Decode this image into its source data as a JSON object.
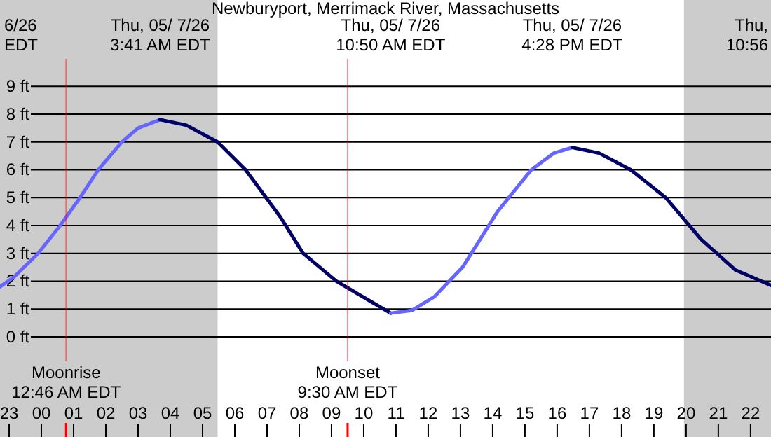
{
  "chart_data": {
    "type": "line",
    "title": "Newburyport, Merrimack River, Massachusetts",
    "xlim": [
      "--05-06T22:43",
      "--05-07T22:38"
    ],
    "ylim": [
      -3.6,
      12.1
    ],
    "xticks": [
      {
        "value": "--05-06T23:00",
        "label": "23"
      },
      {
        "value": "--05-07T00:00",
        "label": "00"
      },
      {
        "value": "--05-07T01:00",
        "label": "01"
      },
      {
        "value": "--05-07T02:00",
        "label": "02"
      },
      {
        "value": "--05-07T03:00",
        "label": "03"
      },
      {
        "value": "--05-07T04:00",
        "label": "04"
      },
      {
        "value": "--05-07T05:00",
        "label": "05"
      },
      {
        "value": "--05-07T06:00",
        "label": "06"
      },
      {
        "value": "--05-07T07:00",
        "label": "07"
      },
      {
        "value": "--05-07T08:00",
        "label": "08"
      },
      {
        "value": "--05-07T09:00",
        "label": "09"
      },
      {
        "value": "--05-07T10:00",
        "label": "10"
      },
      {
        "value": "--05-07T11:00",
        "label": "11"
      },
      {
        "value": "--05-07T12:00",
        "label": "12"
      },
      {
        "value": "--05-07T13:00",
        "label": "13"
      },
      {
        "value": "--05-07T14:00",
        "label": "14"
      },
      {
        "value": "--05-07T15:00",
        "label": "15"
      },
      {
        "value": "--05-07T16:00",
        "label": "16"
      },
      {
        "value": "--05-07T17:00",
        "label": "17"
      },
      {
        "value": "--05-07T18:00",
        "label": "18"
      },
      {
        "value": "--05-07T19:00",
        "label": "19"
      },
      {
        "value": "--05-07T20:00",
        "label": "20"
      },
      {
        "value": "--05-07T21:00",
        "label": "21"
      },
      {
        "value": "--05-07T22:00",
        "label": "22"
      }
    ],
    "yticks": [
      {
        "value": 0,
        "label": "0 ft"
      },
      {
        "value": 1,
        "label": "1 ft"
      },
      {
        "value": 2,
        "label": "2 ft"
      },
      {
        "value": 3,
        "label": "3 ft"
      },
      {
        "value": 4,
        "label": "4 ft"
      },
      {
        "value": 5,
        "label": "5 ft"
      },
      {
        "value": 6,
        "label": "6 ft"
      },
      {
        "value": 7,
        "label": "7 ft"
      },
      {
        "value": 8,
        "label": "8 ft"
      },
      {
        "value": 9,
        "label": "9 ft"
      }
    ],
    "grid": "y",
    "series": [
      {
        "color": "#6666ff",
        "x": [
          "--05-06T22:43",
          "--05-06T23:09",
          "--05-06T23:54",
          "--05-07T00:35",
          "--05-07T01:12",
          "--05-07T01:46",
          "--05-07T02:30",
          "--05-07T03:00",
          "--05-07T03:41"
        ],
        "values": [
          1.8,
          2.15,
          3.0,
          4.0,
          5.0,
          6.0,
          7.0,
          7.5,
          7.8
        ]
      },
      {
        "color": "#000066",
        "x": [
          "--05-07T03:41",
          "--05-07T04:30",
          "--05-07T05:28",
          "--05-07T06:20",
          "--05-07T07:25",
          "--05-07T08:07",
          "--05-07T09:09",
          "--05-07T10:06",
          "--05-07T10:50"
        ],
        "values": [
          7.8,
          7.6,
          7.0,
          6.0,
          4.3,
          3.0,
          2.0,
          1.35,
          0.85
        ]
      },
      {
        "color": "#6666ff",
        "x": [
          "--05-07T10:50",
          "--05-07T11:30",
          "--05-07T12:12",
          "--05-07T13:04",
          "--05-07T14:09",
          "--05-07T15:12",
          "--05-07T15:54",
          "--05-07T16:28"
        ],
        "values": [
          0.85,
          0.95,
          1.45,
          2.5,
          4.5,
          6.0,
          6.6,
          6.8
        ]
      },
      {
        "color": "#000066",
        "x": [
          "--05-07T16:28",
          "--05-07T17:18",
          "--05-07T18:17",
          "--05-07T19:22",
          "--05-07T20:28",
          "--05-07T21:32",
          "--05-07T22:38"
        ],
        "values": [
          6.8,
          6.6,
          6.0,
          5.0,
          3.5,
          2.4,
          1.85
        ]
      }
    ],
    "bands": [
      {
        "axis": "x",
        "from": "--05-06T22:43",
        "to": "--05-07T05:28",
        "color": "#cccccc"
      },
      {
        "axis": "x",
        "from": "--05-07T19:56",
        "to": "--05-07T22:38",
        "color": "#cccccc"
      }
    ],
    "ref_lines": [
      {
        "axis": "x",
        "value": "--05-07T00:46",
        "label": "Moonrise\n12:46 AM EDT",
        "color": "#ff0000"
      },
      {
        "axis": "x",
        "value": "--05-07T09:30",
        "label": "Moonset\n9:30 AM EDT",
        "color": "#ff0000"
      }
    ],
    "annotations": [
      "6/26\nEDT",
      "Thu, 05/ 7/26\n3:41 AM EDT",
      "Thu, 05/ 7/26\n10:50 AM EDT",
      "Thu, 05/ 7/26\n4:28 PM EDT",
      "Thu,\n10:56"
    ]
  }
}
